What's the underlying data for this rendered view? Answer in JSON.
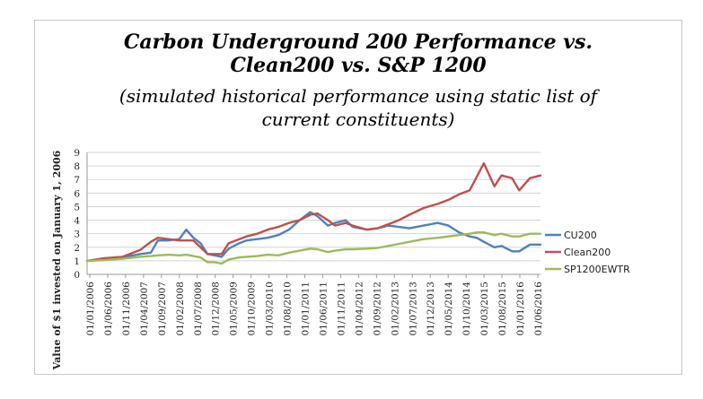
{
  "chart_data": {
    "type": "line",
    "title": "Carbon Underground 200 Performance vs.",
    "title_line2": "Clean200 vs. S&P 1200",
    "subtitle": "(simulated historical performance using static list of",
    "subtitle_line2": "current constituents)",
    "ylabel": "Value of $1 invested on January 1, 2006",
    "xlabel": "",
    "ylim": [
      0,
      9
    ],
    "yticks": [
      0,
      1,
      2,
      3,
      4,
      5,
      6,
      7,
      8,
      9
    ],
    "grid": true,
    "legend_position": "right",
    "x_range": [
      "2006-01",
      "2016-09"
    ],
    "x_tick_labels": [
      "01/01/2006",
      "01/06/2006",
      "01/11/2006",
      "01/04/2007",
      "01/09/2007",
      "01/02/2008",
      "01/07/2008",
      "01/12/2008",
      "01/05/2009",
      "01/10/2009",
      "01/03/2010",
      "01/08/2010",
      "01/01/2011",
      "01/06/2011",
      "01/11/2011",
      "01/04/2012",
      "01/09/2012",
      "01/02/2013",
      "01/07/2013",
      "01/12/2013",
      "01/05/2014",
      "01/10/2014",
      "01/03/2015",
      "01/08/2015",
      "01/01/2016",
      "01/06/2016"
    ],
    "series": [
      {
        "name": "CU200",
        "color": "#4f81bd",
        "points": [
          [
            "2006-01",
            1.0
          ],
          [
            "2006-06",
            1.1
          ],
          [
            "2006-11",
            1.25
          ],
          [
            "2007-04",
            1.5
          ],
          [
            "2007-07",
            1.6
          ],
          [
            "2007-09",
            2.5
          ],
          [
            "2007-12",
            2.5
          ],
          [
            "2008-03",
            2.6
          ],
          [
            "2008-05",
            3.3
          ],
          [
            "2008-07",
            2.7
          ],
          [
            "2008-09",
            2.3
          ],
          [
            "2008-11",
            1.5
          ],
          [
            "2009-01",
            1.4
          ],
          [
            "2009-03",
            1.3
          ],
          [
            "2009-05",
            1.9
          ],
          [
            "2009-08",
            2.3
          ],
          [
            "2009-10",
            2.5
          ],
          [
            "2010-01",
            2.6
          ],
          [
            "2010-04",
            2.7
          ],
          [
            "2010-07",
            2.9
          ],
          [
            "2010-10",
            3.3
          ],
          [
            "2011-01",
            4.0
          ],
          [
            "2011-04",
            4.6
          ],
          [
            "2011-06",
            4.3
          ],
          [
            "2011-09",
            3.6
          ],
          [
            "2011-11",
            3.8
          ],
          [
            "2012-02",
            4.0
          ],
          [
            "2012-04",
            3.5
          ],
          [
            "2012-08",
            3.3
          ],
          [
            "2012-11",
            3.4
          ],
          [
            "2013-02",
            3.6
          ],
          [
            "2013-05",
            3.5
          ],
          [
            "2013-08",
            3.4
          ],
          [
            "2013-12",
            3.6
          ],
          [
            "2014-04",
            3.8
          ],
          [
            "2014-07",
            3.6
          ],
          [
            "2014-10",
            3.1
          ],
          [
            "2015-01",
            2.8
          ],
          [
            "2015-03",
            2.7
          ],
          [
            "2015-05",
            2.4
          ],
          [
            "2015-08",
            2.0
          ],
          [
            "2015-10",
            2.1
          ],
          [
            "2016-01",
            1.7
          ],
          [
            "2016-03",
            1.7
          ],
          [
            "2016-06",
            2.2
          ],
          [
            "2016-09",
            2.2
          ]
        ]
      },
      {
        "name": "Clean200",
        "color": "#c0504d",
        "points": [
          [
            "2006-01",
            1.0
          ],
          [
            "2006-06",
            1.2
          ],
          [
            "2006-11",
            1.3
          ],
          [
            "2007-04",
            1.8
          ],
          [
            "2007-07",
            2.4
          ],
          [
            "2007-09",
            2.7
          ],
          [
            "2007-12",
            2.6
          ],
          [
            "2008-03",
            2.5
          ],
          [
            "2008-05",
            2.5
          ],
          [
            "2008-07",
            2.5
          ],
          [
            "2008-09",
            2.0
          ],
          [
            "2008-11",
            1.5
          ],
          [
            "2009-01",
            1.5
          ],
          [
            "2009-03",
            1.5
          ],
          [
            "2009-05",
            2.3
          ],
          [
            "2009-08",
            2.6
          ],
          [
            "2009-10",
            2.8
          ],
          [
            "2010-01",
            3.0
          ],
          [
            "2010-04",
            3.3
          ],
          [
            "2010-07",
            3.5
          ],
          [
            "2010-10",
            3.8
          ],
          [
            "2011-01",
            4.0
          ],
          [
            "2011-04",
            4.4
          ],
          [
            "2011-06",
            4.5
          ],
          [
            "2011-09",
            4.0
          ],
          [
            "2011-11",
            3.6
          ],
          [
            "2012-02",
            3.8
          ],
          [
            "2012-04",
            3.6
          ],
          [
            "2012-08",
            3.3
          ],
          [
            "2012-11",
            3.4
          ],
          [
            "2013-02",
            3.7
          ],
          [
            "2013-05",
            4.0
          ],
          [
            "2013-08",
            4.4
          ],
          [
            "2013-12",
            4.9
          ],
          [
            "2014-04",
            5.2
          ],
          [
            "2014-07",
            5.5
          ],
          [
            "2014-10",
            5.9
          ],
          [
            "2015-01",
            6.2
          ],
          [
            "2015-03",
            7.2
          ],
          [
            "2015-05",
            8.2
          ],
          [
            "2015-08",
            6.5
          ],
          [
            "2015-10",
            7.3
          ],
          [
            "2016-01",
            7.1
          ],
          [
            "2016-03",
            6.2
          ],
          [
            "2016-06",
            7.1
          ],
          [
            "2016-09",
            7.3
          ]
        ]
      },
      {
        "name": "SP1200EWTR",
        "color": "#9bbb59",
        "points": [
          [
            "2006-01",
            1.0
          ],
          [
            "2006-06",
            1.05
          ],
          [
            "2006-11",
            1.15
          ],
          [
            "2007-04",
            1.3
          ],
          [
            "2007-07",
            1.35
          ],
          [
            "2007-09",
            1.4
          ],
          [
            "2007-12",
            1.45
          ],
          [
            "2008-03",
            1.4
          ],
          [
            "2008-05",
            1.45
          ],
          [
            "2008-07",
            1.35
          ],
          [
            "2008-09",
            1.25
          ],
          [
            "2008-11",
            0.9
          ],
          [
            "2009-01",
            0.9
          ],
          [
            "2009-03",
            0.8
          ],
          [
            "2009-05",
            1.1
          ],
          [
            "2009-08",
            1.25
          ],
          [
            "2009-10",
            1.3
          ],
          [
            "2010-01",
            1.35
          ],
          [
            "2010-04",
            1.45
          ],
          [
            "2010-07",
            1.4
          ],
          [
            "2010-10",
            1.6
          ],
          [
            "2011-01",
            1.75
          ],
          [
            "2011-04",
            1.9
          ],
          [
            "2011-06",
            1.85
          ],
          [
            "2011-09",
            1.65
          ],
          [
            "2011-11",
            1.75
          ],
          [
            "2012-02",
            1.85
          ],
          [
            "2012-04",
            1.85
          ],
          [
            "2012-08",
            1.9
          ],
          [
            "2012-11",
            1.95
          ],
          [
            "2013-02",
            2.1
          ],
          [
            "2013-05",
            2.25
          ],
          [
            "2013-08",
            2.4
          ],
          [
            "2013-12",
            2.6
          ],
          [
            "2014-04",
            2.7
          ],
          [
            "2014-07",
            2.8
          ],
          [
            "2014-10",
            2.9
          ],
          [
            "2015-01",
            3.0
          ],
          [
            "2015-03",
            3.1
          ],
          [
            "2015-05",
            3.1
          ],
          [
            "2015-08",
            2.9
          ],
          [
            "2015-10",
            3.0
          ],
          [
            "2016-01",
            2.8
          ],
          [
            "2016-03",
            2.8
          ],
          [
            "2016-06",
            3.0
          ],
          [
            "2016-09",
            3.0
          ]
        ]
      }
    ]
  }
}
